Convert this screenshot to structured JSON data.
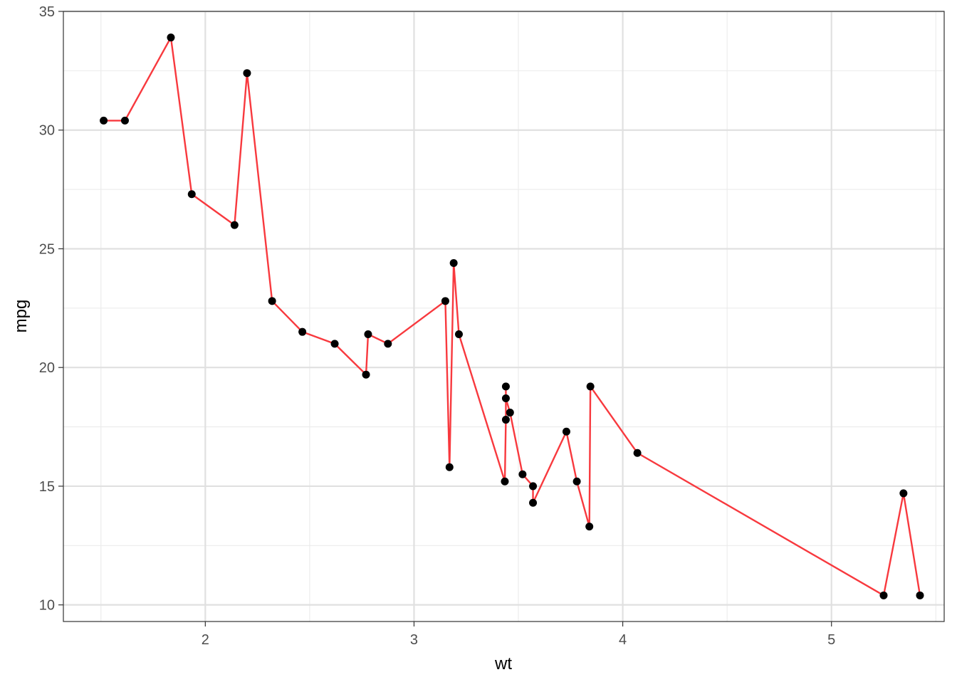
{
  "chart_data": {
    "type": "line",
    "title": "",
    "xlabel": "wt",
    "ylabel": "mpg",
    "xlim": [
      1.32,
      5.54
    ],
    "ylim": [
      9.3,
      35.0
    ],
    "x_ticks": [
      2,
      3,
      4,
      5
    ],
    "x_tick_labels": [
      "2",
      "3",
      "4",
      "5"
    ],
    "x_minor_ticks": [
      1.5,
      2.5,
      3.5,
      4.5,
      5.5
    ],
    "y_ticks": [
      10,
      15,
      20,
      25,
      30,
      35
    ],
    "y_tick_labels": [
      "10",
      "15",
      "20",
      "25",
      "30",
      "35"
    ],
    "y_minor_ticks": [
      12.5,
      17.5,
      22.5,
      27.5,
      32.5
    ],
    "grid": true,
    "legend": "none",
    "line_color": "#F8393E",
    "point_color": "#000000",
    "series": [
      {
        "x": [
          1.513,
          1.615,
          1.835,
          1.935,
          2.14,
          2.2,
          2.32,
          2.465,
          2.62,
          2.77,
          2.78,
          2.875,
          3.15,
          3.17,
          3.19,
          3.215,
          3.435,
          3.44,
          3.44,
          3.44,
          3.46,
          3.52,
          3.57,
          3.57,
          3.73,
          3.78,
          3.84,
          3.845,
          4.07,
          5.25,
          5.345,
          5.424
        ],
        "y": [
          30.4,
          30.4,
          33.9,
          27.3,
          26.0,
          32.4,
          22.8,
          21.5,
          21.0,
          19.7,
          21.4,
          21.0,
          22.8,
          15.8,
          24.4,
          21.4,
          15.2,
          17.8,
          19.2,
          18.7,
          18.1,
          15.5,
          15.0,
          14.3,
          17.3,
          15.2,
          13.3,
          19.2,
          16.4,
          10.4,
          14.7,
          10.4
        ]
      }
    ]
  }
}
